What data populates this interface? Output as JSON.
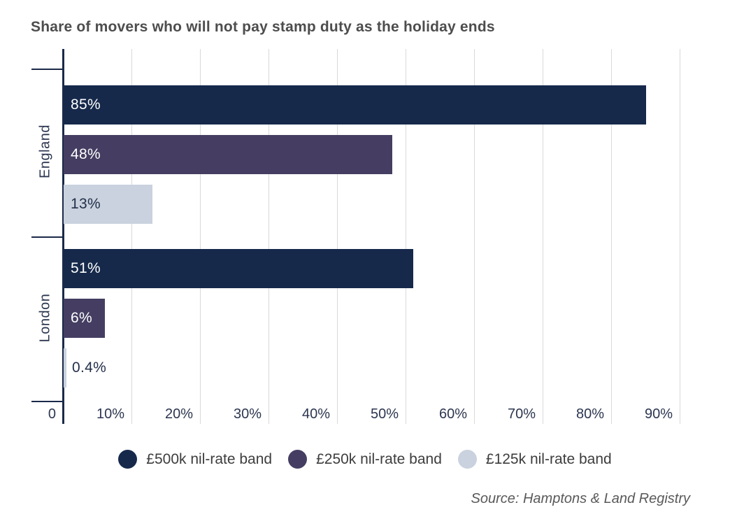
{
  "title": "Share of movers who will not pay stamp duty as the holiday ends",
  "source_note": "Source: Hamptons & Land Registry",
  "colors": {
    "axis": "#1b2a49",
    "gridline": "#d9d9d9",
    "title_text": "#4d4d4d",
    "axis_text": "#2c3650",
    "legend_text": "#3d3d3d",
    "source_text": "#595959",
    "navy": "#16294b",
    "purple": "#453e62",
    "light_blue": "#c9d2de"
  },
  "chart_data": {
    "type": "bar",
    "orientation": "horizontal",
    "title": "Share of movers who will not pay stamp duty as the holiday ends",
    "categories": [
      "England",
      "London"
    ],
    "series": [
      {
        "name": "£500k nil-rate band",
        "color": "#16294b",
        "label_color": "#ffffff",
        "values": [
          85,
          51
        ],
        "value_labels": [
          "85%",
          "51%"
        ]
      },
      {
        "name": "£250k nil-rate band",
        "color": "#453e62",
        "label_color": "#ffffff",
        "values": [
          48,
          6
        ],
        "value_labels": [
          "48%",
          "6%"
        ]
      },
      {
        "name": "£125k nil-rate band",
        "color": "#c9d2de",
        "label_color": "#23304a",
        "values": [
          13,
          0.4
        ],
        "value_labels": [
          "13%",
          "0.4%"
        ]
      }
    ],
    "x_ticks": [
      {
        "label": "0",
        "value": 0
      },
      {
        "label": "10%",
        "value": 10
      },
      {
        "label": "20%",
        "value": 20
      },
      {
        "label": "30%",
        "value": 30
      },
      {
        "label": "40%",
        "value": 40
      },
      {
        "label": "50%",
        "value": 50
      },
      {
        "label": "60%",
        "value": 60
      },
      {
        "label": "70%",
        "value": 70
      },
      {
        "label": "80%",
        "value": 80
      },
      {
        "label": "90%",
        "value": 90
      }
    ],
    "xlim": [
      0,
      90
    ],
    "grid": true,
    "legend_position": "bottom"
  }
}
